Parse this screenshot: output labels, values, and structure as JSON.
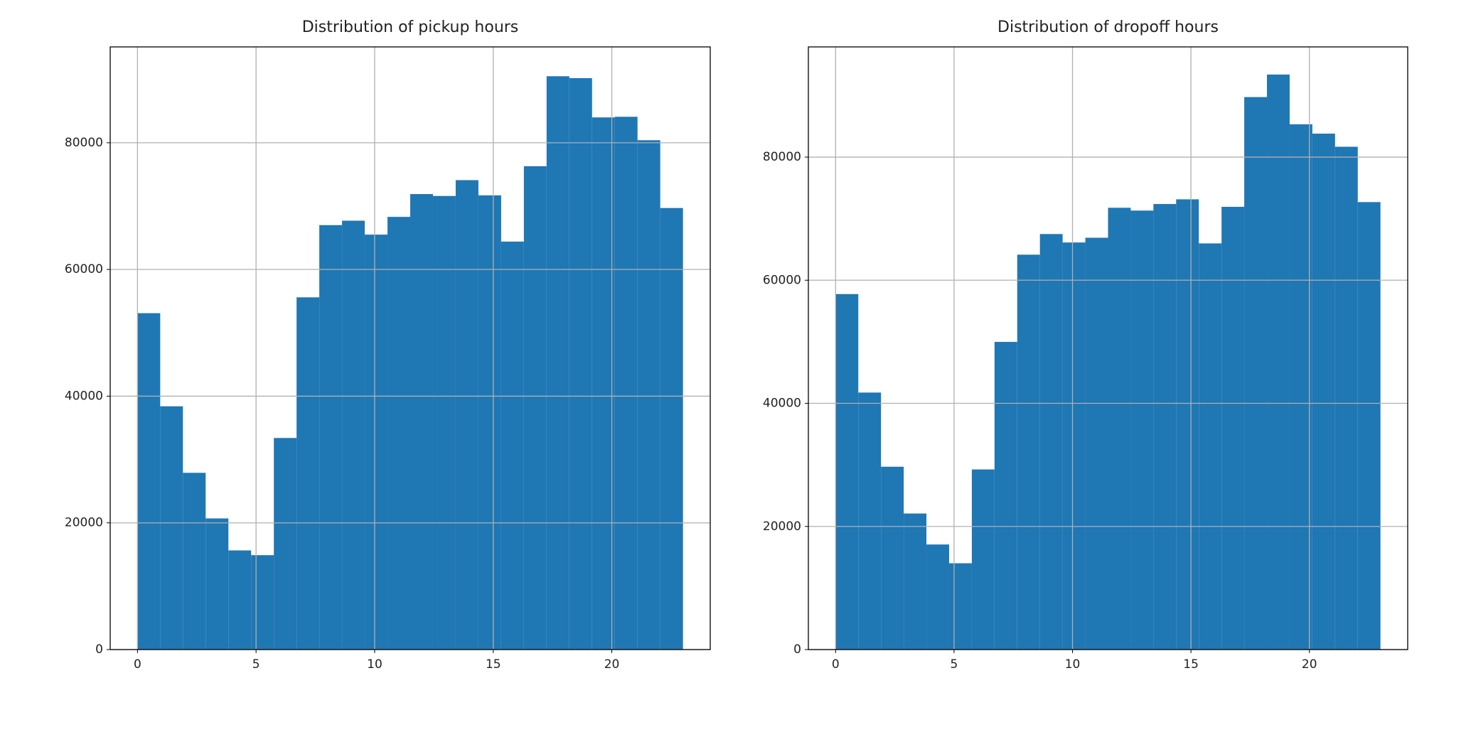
{
  "chart_data": [
    {
      "type": "histogram",
      "title": "Distribution of pickup hours",
      "bins": [
        0,
        0.9583,
        1.9167,
        2.875,
        3.8333,
        4.7917,
        5.75,
        6.7083,
        7.6667,
        8.625,
        9.5833,
        10.5417,
        11.5,
        12.4583,
        13.4167,
        14.375,
        15.3333,
        16.2917,
        17.25,
        18.2083,
        19.1667,
        20.125,
        21.0833,
        22.0417,
        23
      ],
      "values": [
        53100,
        38400,
        27900,
        20700,
        15650,
        14900,
        33400,
        55600,
        67000,
        67700,
        65500,
        68300,
        71900,
        71600,
        74100,
        71700,
        64400,
        76300,
        90500,
        90200,
        84000,
        84100,
        80400,
        69700
      ],
      "color": "#1f77b4",
      "xlim": [
        -1.15,
        24.15
      ],
      "ylim": [
        0,
        95130
      ],
      "xticks": [
        0,
        5,
        10,
        15,
        20
      ],
      "yticks": [
        0,
        20000,
        40000,
        60000,
        80000
      ],
      "grid": true
    },
    {
      "type": "histogram",
      "title": "Distribution of dropoff hours",
      "bins": [
        0,
        0.9583,
        1.9167,
        2.875,
        3.8333,
        4.7917,
        5.75,
        6.7083,
        7.6667,
        8.625,
        9.5833,
        10.5417,
        11.5,
        12.4583,
        13.4167,
        14.375,
        15.3333,
        16.2917,
        17.25,
        18.2083,
        19.1667,
        20.125,
        21.0833,
        22.0417,
        23
      ],
      "values": [
        57750,
        41750,
        29700,
        22100,
        17070,
        14020,
        29260,
        49980,
        64150,
        67500,
        66130,
        66900,
        71770,
        71310,
        72380,
        73140,
        65980,
        71920,
        89750,
        93410,
        85330,
        83810,
        81680,
        72690
      ],
      "color": "#1f77b4",
      "xlim": [
        -1.15,
        24.15
      ],
      "ylim": [
        0,
        97900
      ],
      "xticks": [
        0,
        5,
        10,
        15,
        20
      ],
      "yticks": [
        0,
        20000,
        40000,
        60000,
        80000
      ],
      "grid": true
    }
  ]
}
